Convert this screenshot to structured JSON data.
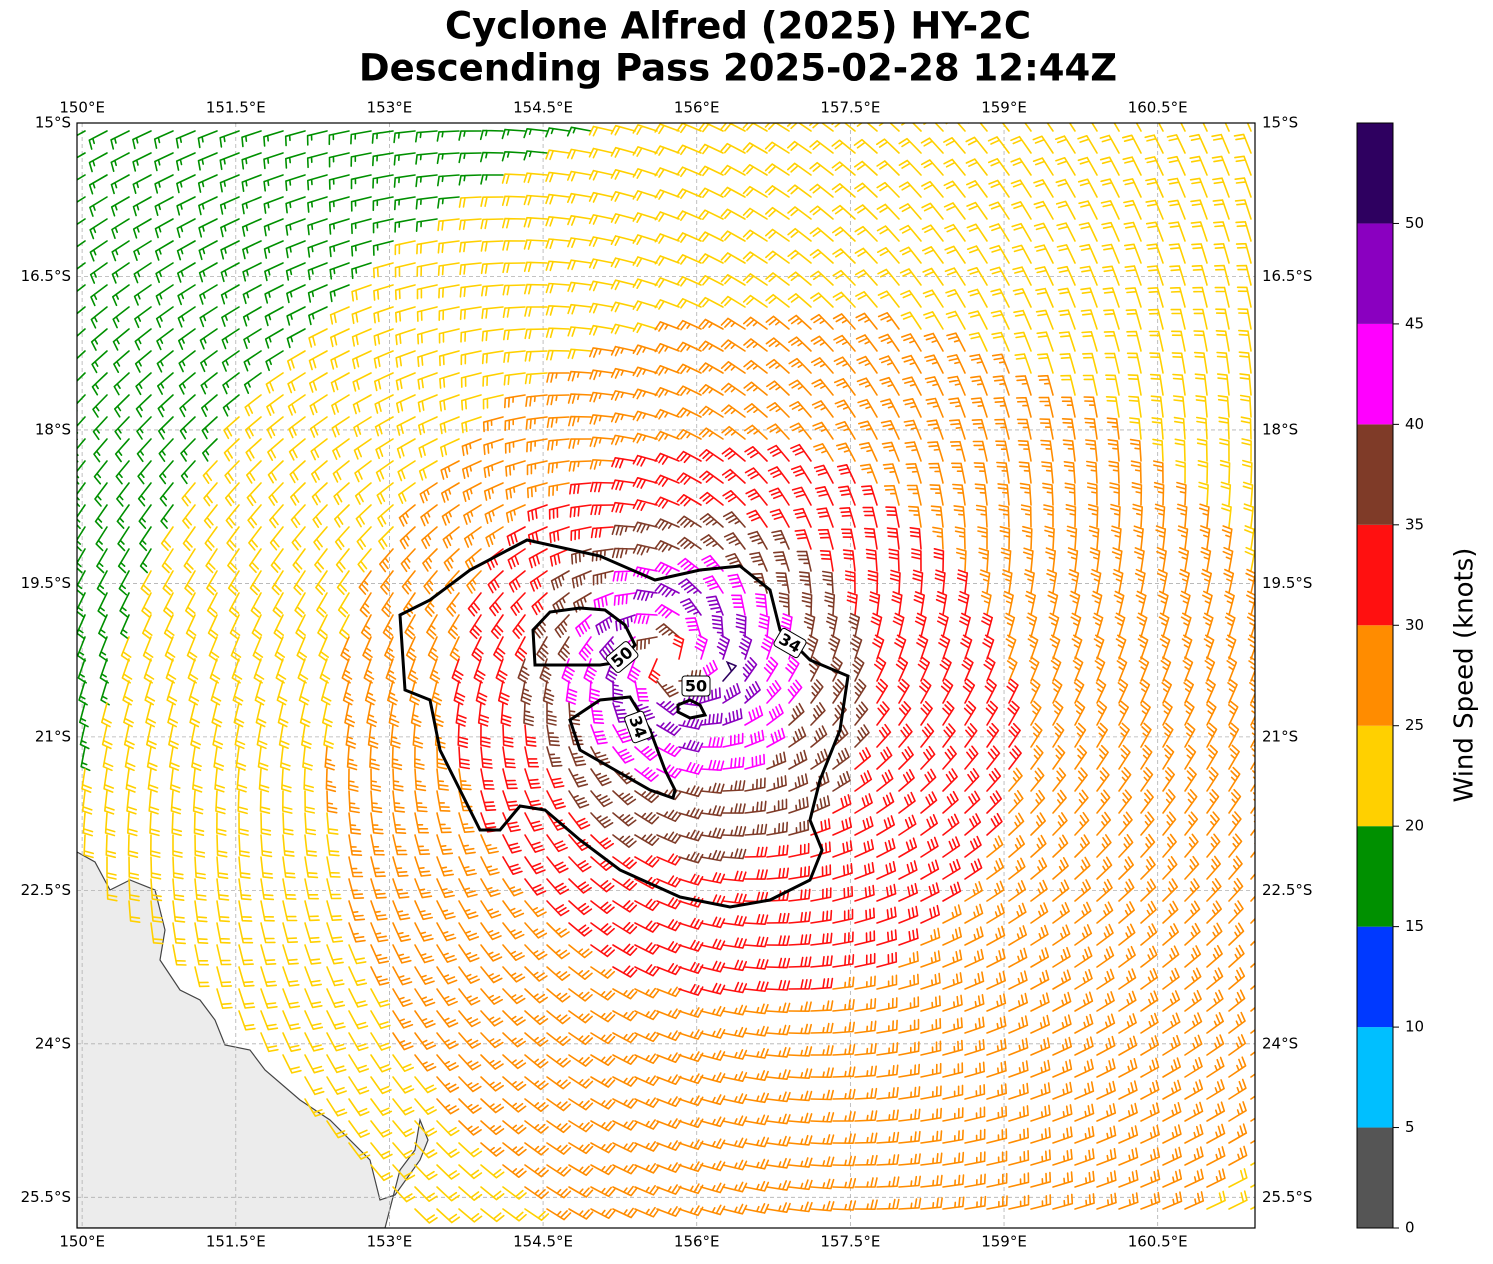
{
  "map": {
    "title": "Cyclone Alfred (2025) HY-2C",
    "subtitle": "Descending Pass 2025-02-28 12:44Z",
    "xlim": [
      149.95,
      161.45
    ],
    "ylim": [
      -15,
      -25.8
    ],
    "xticks": [
      {
        "value": 150,
        "label": "150°E"
      },
      {
        "value": 151.5,
        "label": "151.5°E"
      },
      {
        "value": 153,
        "label": "153°E"
      },
      {
        "value": 154.5,
        "label": "154.5°E"
      },
      {
        "value": 156,
        "label": "156°E"
      },
      {
        "value": 157.5,
        "label": "157.5°E"
      },
      {
        "value": 159,
        "label": "159°E"
      },
      {
        "value": 160.5,
        "label": "160.5°E"
      }
    ],
    "yticks": [
      {
        "value": -15,
        "label": "15°S"
      },
      {
        "value": -16.5,
        "label": "16.5°S"
      },
      {
        "value": -18,
        "label": "18°S"
      },
      {
        "value": -19.5,
        "label": "19.5°S"
      },
      {
        "value": -21,
        "label": "21°S"
      },
      {
        "value": -22.5,
        "label": "22.5°S"
      },
      {
        "value": -24,
        "label": "24°S"
      },
      {
        "value": -25.5,
        "label": "25.5°S"
      }
    ],
    "grid": true,
    "contour_labels": [
      "34",
      "50",
      "50",
      "34"
    ],
    "colorbar": {
      "label": "Wind Speed (knots)",
      "levels": [
        0,
        5,
        10,
        15,
        20,
        25,
        30,
        35,
        40,
        45,
        50,
        55
      ],
      "colors": [
        "#555555",
        "#00bfff",
        "#0039ff",
        "#009000",
        "#ffd000",
        "#ff8c00",
        "#ff1010",
        "#7f3b28",
        "#ff00ff",
        "#8a00c0",
        "#2e0060"
      ],
      "ticks": [
        0,
        5,
        10,
        15,
        20,
        25,
        30,
        35,
        40,
        45,
        50
      ]
    }
  }
}
